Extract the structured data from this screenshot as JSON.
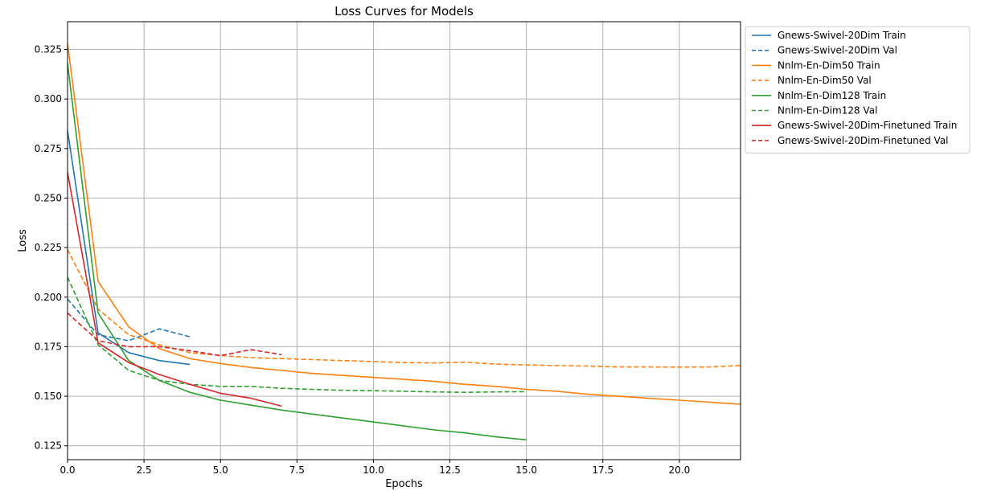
{
  "chart_data": {
    "type": "line",
    "title": "Loss Curves for Models",
    "xlabel": "Epochs",
    "ylabel": "Loss",
    "xlim": [
      0,
      22
    ],
    "ylim": [
      0.118,
      0.339
    ],
    "grid": true,
    "legend_position": "outside-top-right",
    "xticks": [
      0,
      2.5,
      5,
      7.5,
      10,
      12.5,
      15,
      17.5,
      20
    ],
    "xtick_labels": [
      "0.0",
      "2.5",
      "5.0",
      "7.5",
      "10.0",
      "12.5",
      "15.0",
      "17.5",
      "20.0"
    ],
    "yticks": [
      0.125,
      0.15,
      0.175,
      0.2,
      0.225,
      0.25,
      0.275,
      0.3,
      0.325
    ],
    "ytick_labels": [
      "0.125",
      "0.150",
      "0.175",
      "0.200",
      "0.225",
      "0.250",
      "0.275",
      "0.300",
      "0.325"
    ],
    "series": [
      {
        "name": "Gnews-Swivel-20Dim Train",
        "color": "#1f77b4",
        "dash": false,
        "x": [
          0,
          1,
          2,
          3,
          4
        ],
        "y": [
          0.284,
          0.182,
          0.172,
          0.168,
          0.166
        ]
      },
      {
        "name": "Gnews-Swivel-20Dim Val",
        "color": "#1f77b4",
        "dash": true,
        "x": [
          0,
          1,
          2,
          3,
          4
        ],
        "y": [
          0.199,
          0.181,
          0.178,
          0.184,
          0.18
        ]
      },
      {
        "name": "Nnlm-En-Dim50 Train",
        "color": "#ff7f0e",
        "dash": false,
        "x": [
          0,
          1,
          2,
          3,
          4,
          5,
          6,
          7,
          8,
          9,
          10,
          11,
          12,
          13,
          14,
          15,
          16,
          17,
          18,
          19,
          20,
          21,
          22
        ],
        "y": [
          0.328,
          0.208,
          0.185,
          0.174,
          0.169,
          0.1665,
          0.1645,
          0.163,
          0.1615,
          0.1605,
          0.1595,
          0.1585,
          0.1575,
          0.156,
          0.155,
          0.1535,
          0.1525,
          0.151,
          0.15,
          0.149,
          0.148,
          0.147,
          0.146
        ]
      },
      {
        "name": "Nnlm-En-Dim50 Val",
        "color": "#ff7f0e",
        "dash": true,
        "x": [
          0,
          1,
          2,
          3,
          4,
          5,
          6,
          7,
          8,
          9,
          10,
          11,
          12,
          13,
          14,
          15,
          16,
          17,
          18,
          19,
          20,
          21,
          22
        ],
        "y": [
          0.224,
          0.194,
          0.181,
          0.176,
          0.172,
          0.1705,
          0.1695,
          0.169,
          0.1685,
          0.168,
          0.1675,
          0.167,
          0.1668,
          0.1672,
          0.1662,
          0.1658,
          0.1655,
          0.1652,
          0.1648,
          0.1648,
          0.1647,
          0.1648,
          0.1655
        ]
      },
      {
        "name": "Nnlm-En-Dim128 Train",
        "color": "#2ca02c",
        "dash": false,
        "x": [
          0,
          1,
          2,
          3,
          4,
          5,
          6,
          7,
          8,
          9,
          10,
          11,
          12,
          13,
          14,
          15
        ],
        "y": [
          0.318,
          0.192,
          0.168,
          0.158,
          0.152,
          0.148,
          0.1455,
          0.143,
          0.141,
          0.139,
          0.137,
          0.135,
          0.133,
          0.1315,
          0.1295,
          0.128
        ]
      },
      {
        "name": "Nnlm-En-Dim128 Val",
        "color": "#2ca02c",
        "dash": true,
        "x": [
          0,
          1,
          2,
          3,
          4,
          5,
          6,
          7,
          8,
          9,
          10,
          11,
          12,
          13,
          14,
          15
        ],
        "y": [
          0.21,
          0.176,
          0.163,
          0.158,
          0.156,
          0.155,
          0.155,
          0.154,
          0.1535,
          0.153,
          0.1528,
          0.1525,
          0.1522,
          0.152,
          0.1522,
          0.1523
        ]
      },
      {
        "name": "Gnews-Swivel-20Dim-Finetuned Train",
        "color": "#d62728",
        "dash": false,
        "x": [
          0,
          1,
          2,
          3,
          4,
          5,
          6,
          7
        ],
        "y": [
          0.263,
          0.177,
          0.167,
          0.161,
          0.156,
          0.1515,
          0.149,
          0.145
        ]
      },
      {
        "name": "Gnews-Swivel-20Dim-Finetuned Val",
        "color": "#d62728",
        "dash": true,
        "x": [
          0,
          1,
          2,
          3,
          4,
          5,
          6,
          7
        ],
        "y": [
          0.192,
          0.178,
          0.175,
          0.175,
          0.173,
          0.1705,
          0.1735,
          0.171
        ]
      }
    ]
  }
}
